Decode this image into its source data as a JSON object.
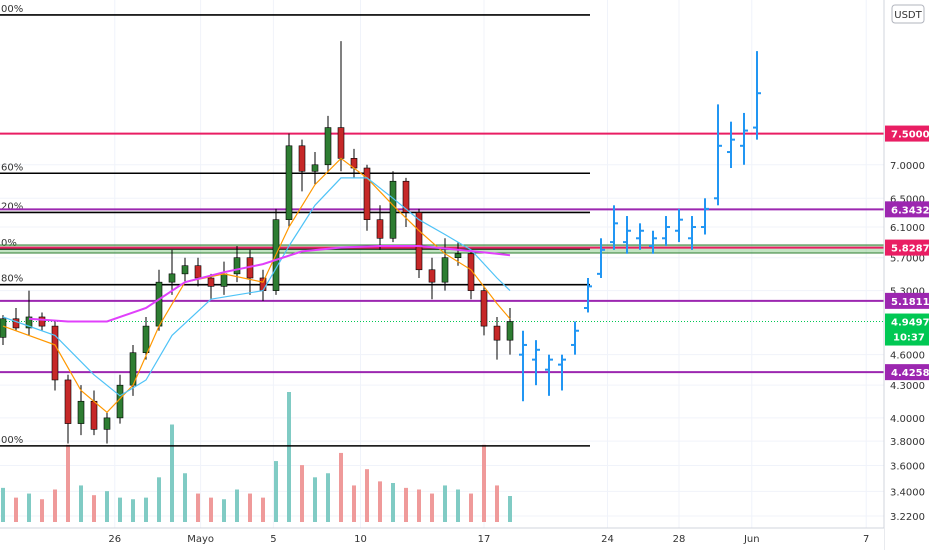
{
  "chart_data": {
    "type": "candlestick",
    "quote_currency": "USDT",
    "y_scale": "log",
    "ylim": [
      3.22,
      9.9
    ],
    "y_ticks": [
      {
        "label": "7.0000",
        "value": 7.0
      },
      {
        "label": "6.5000",
        "value": 6.5
      },
      {
        "label": "6.1000",
        "value": 6.1
      },
      {
        "label": "5.7000",
        "value": 5.7
      },
      {
        "label": "5.3000",
        "value": 5.3
      },
      {
        "label": "4.6000",
        "value": 4.6
      },
      {
        "label": "4.3000",
        "value": 4.3
      },
      {
        "label": "4.0000",
        "value": 4.0
      },
      {
        "label": "3.8000",
        "value": 3.8
      },
      {
        "label": "3.6000",
        "value": 3.6
      },
      {
        "label": "3.4000",
        "value": 3.4
      },
      {
        "label": "3.2200",
        "value": 3.22
      }
    ],
    "x_domain": [
      0,
      67.2
    ],
    "x_ticks": [
      {
        "label": "26",
        "value": 8.6
      },
      {
        "label": "Mayo",
        "value": 15.2
      },
      {
        "label": "5",
        "value": 20.8
      },
      {
        "label": "10",
        "value": 27.5
      },
      {
        "label": "17",
        "value": 37.0
      },
      {
        "label": "24",
        "value": 46.5
      },
      {
        "label": "28",
        "value": 52.0
      },
      {
        "label": "Jun",
        "value": 57.6
      },
      {
        "label": "7",
        "value": 66.4
      }
    ],
    "price_levels": [
      {
        "label": "7.5000",
        "value": 7.5,
        "color": "#e91e63"
      },
      {
        "label": "6.3432",
        "value": 6.3432,
        "color": "#9c27b0"
      },
      {
        "label": "5.8287",
        "value": 5.8287,
        "color": "#e91e63"
      },
      {
        "label": "5.1811",
        "value": 5.1811,
        "color": "#9c27b0"
      },
      {
        "label": "4.4258",
        "value": 4.4258,
        "color": "#9c27b0"
      }
    ],
    "fib_levels": [
      {
        "label": "00%",
        "value": 9.75
      },
      {
        "label": "60%",
        "value": 6.87
      },
      {
        "label": "20%",
        "value": 6.3
      },
      {
        "label": "0%",
        "value": 5.81
      },
      {
        "label": "80%",
        "value": 5.37
      },
      {
        "label": "00%",
        "value": 3.76
      }
    ],
    "current_price": {
      "label": "4.9497",
      "countdown": "10:37",
      "value": 4.9497,
      "color": "#00c853"
    },
    "candles": [
      [
        0,
        4.78,
        4.98,
        4.7,
        5.02
      ],
      [
        1,
        4.98,
        4.88,
        4.85,
        5.1
      ],
      [
        2,
        4.88,
        5.0,
        4.8,
        5.3
      ],
      [
        3,
        5.0,
        4.9,
        4.85,
        5.05
      ],
      [
        4,
        4.9,
        4.35,
        4.25,
        4.95
      ],
      [
        5,
        4.35,
        3.95,
        3.78,
        4.4
      ],
      [
        6,
        3.95,
        4.15,
        3.85,
        4.3
      ],
      [
        7,
        4.15,
        3.9,
        3.85,
        4.25
      ],
      [
        8,
        3.9,
        4.0,
        3.78,
        4.05
      ],
      [
        9,
        4.0,
        4.3,
        3.95,
        4.4
      ],
      [
        10,
        4.3,
        4.62,
        4.2,
        4.7
      ],
      [
        11,
        4.62,
        4.9,
        4.55,
        5.0
      ],
      [
        12,
        4.9,
        5.4,
        4.85,
        5.55
      ],
      [
        13,
        5.4,
        5.5,
        5.25,
        5.8
      ],
      [
        14,
        5.5,
        5.6,
        5.4,
        5.7
      ],
      [
        15,
        5.6,
        5.45,
        5.35,
        5.7
      ],
      [
        16,
        5.45,
        5.35,
        5.2,
        5.5
      ],
      [
        17,
        5.35,
        5.5,
        5.25,
        5.65
      ],
      [
        18,
        5.5,
        5.7,
        5.4,
        5.85
      ],
      [
        19,
        5.7,
        5.45,
        5.25,
        5.8
      ],
      [
        20,
        5.45,
        5.3,
        5.18,
        5.55
      ],
      [
        21,
        5.3,
        6.2,
        5.25,
        6.35
      ],
      [
        22,
        6.2,
        7.3,
        6.1,
        7.5
      ],
      [
        23,
        7.3,
        6.9,
        6.6,
        7.4
      ],
      [
        24,
        6.9,
        7.0,
        6.7,
        7.2
      ],
      [
        25,
        7.0,
        7.6,
        6.9,
        7.8
      ],
      [
        26,
        7.6,
        7.1,
        6.9,
        9.2
      ],
      [
        27,
        7.1,
        6.95,
        6.8,
        7.25
      ],
      [
        28,
        6.95,
        6.2,
        6.05,
        7.0
      ],
      [
        29,
        6.2,
        5.95,
        5.8,
        6.4
      ],
      [
        30,
        5.95,
        6.75,
        5.9,
        6.9
      ],
      [
        31,
        6.75,
        6.3,
        6.1,
        6.8
      ],
      [
        32,
        6.3,
        5.55,
        5.45,
        6.35
      ],
      [
        33,
        5.55,
        5.4,
        5.2,
        5.7
      ],
      [
        34,
        5.4,
        5.7,
        5.3,
        5.95
      ],
      [
        35,
        5.7,
        5.75,
        5.6,
        5.9
      ],
      [
        36,
        5.75,
        5.3,
        5.2,
        5.8
      ],
      [
        37,
        5.3,
        4.9,
        4.8,
        5.35
      ],
      [
        38,
        4.9,
        4.75,
        4.55,
        5.0
      ],
      [
        39,
        4.75,
        4.95,
        4.6,
        5.1
      ]
    ],
    "projection": [
      [
        40,
        4.6,
        4.7,
        4.15,
        4.85
      ],
      [
        41,
        4.55,
        4.65,
        4.3,
        4.75
      ],
      [
        42,
        4.45,
        4.55,
        4.2,
        4.6
      ],
      [
        43,
        4.5,
        4.55,
        4.25,
        4.6
      ],
      [
        44,
        4.7,
        4.85,
        4.6,
        4.95
      ],
      [
        45,
        5.1,
        5.35,
        5.05,
        5.45
      ],
      [
        46,
        5.5,
        5.8,
        5.45,
        5.95
      ],
      [
        47,
        5.9,
        6.15,
        5.8,
        6.4
      ],
      [
        48,
        5.9,
        6.05,
        5.75,
        6.25
      ],
      [
        49,
        5.95,
        6.05,
        5.8,
        6.15
      ],
      [
        50,
        5.85,
        5.95,
        5.75,
        6.05
      ],
      [
        51,
        5.95,
        6.1,
        5.85,
        6.25
      ],
      [
        52,
        6.05,
        6.2,
        5.9,
        6.35
      ],
      [
        53,
        5.95,
        6.1,
        5.8,
        6.25
      ],
      [
        54,
        6.1,
        6.35,
        6.0,
        6.5
      ],
      [
        55,
        6.5,
        7.3,
        6.4,
        8.0
      ],
      [
        56,
        7.2,
        7.4,
        6.95,
        7.7
      ],
      [
        57,
        7.3,
        7.55,
        7.0,
        7.85
      ],
      [
        58,
        7.6,
        8.2,
        7.4,
        9.0
      ]
    ],
    "volume": [
      [
        0,
        0.42
      ],
      [
        1,
        0.3
      ],
      [
        2,
        0.35
      ],
      [
        3,
        0.28
      ],
      [
        4,
        0.4
      ],
      [
        5,
        0.95
      ],
      [
        6,
        0.45
      ],
      [
        7,
        0.33
      ],
      [
        8,
        0.38
      ],
      [
        9,
        0.3
      ],
      [
        10,
        0.28
      ],
      [
        11,
        0.3
      ],
      [
        12,
        0.55
      ],
      [
        13,
        1.2
      ],
      [
        14,
        0.6
      ],
      [
        15,
        0.35
      ],
      [
        16,
        0.3
      ],
      [
        17,
        0.28
      ],
      [
        18,
        0.4
      ],
      [
        19,
        0.35
      ],
      [
        20,
        0.3
      ],
      [
        21,
        0.75
      ],
      [
        22,
        1.6
      ],
      [
        23,
        0.7
      ],
      [
        24,
        0.55
      ],
      [
        25,
        0.6
      ],
      [
        26,
        0.85
      ],
      [
        27,
        0.45
      ],
      [
        28,
        0.65
      ],
      [
        29,
        0.5
      ],
      [
        30,
        0.48
      ],
      [
        31,
        0.42
      ],
      [
        32,
        0.4
      ],
      [
        33,
        0.35
      ],
      [
        34,
        0.45
      ],
      [
        35,
        0.4
      ],
      [
        36,
        0.35
      ],
      [
        37,
        0.95
      ],
      [
        38,
        0.45
      ],
      [
        39,
        0.32
      ]
    ],
    "indicators": [
      {
        "color": "#ff9800",
        "points": [
          [
            0,
            4.9
          ],
          [
            4,
            4.7
          ],
          [
            6,
            4.25
          ],
          [
            8,
            4.05
          ],
          [
            10,
            4.3
          ],
          [
            12,
            4.9
          ],
          [
            14,
            5.4
          ],
          [
            17,
            5.5
          ],
          [
            20,
            5.4
          ],
          [
            22,
            6.1
          ],
          [
            24,
            6.7
          ],
          [
            26,
            7.1
          ],
          [
            28,
            6.8
          ],
          [
            30,
            6.4
          ],
          [
            32,
            6.05
          ],
          [
            34,
            5.75
          ],
          [
            36,
            5.55
          ],
          [
            38,
            5.15
          ],
          [
            39,
            4.98
          ]
        ]
      },
      {
        "color": "#4fc3f7",
        "points": [
          [
            0,
            5.0
          ],
          [
            4,
            4.8
          ],
          [
            7,
            4.4
          ],
          [
            9,
            4.2
          ],
          [
            11,
            4.35
          ],
          [
            13,
            4.8
          ],
          [
            16,
            5.2
          ],
          [
            20,
            5.3
          ],
          [
            22,
            5.85
          ],
          [
            24,
            6.4
          ],
          [
            26,
            6.8
          ],
          [
            28,
            6.8
          ],
          [
            30,
            6.5
          ],
          [
            32,
            6.2
          ],
          [
            34,
            6.0
          ],
          [
            36,
            5.8
          ],
          [
            38,
            5.45
          ],
          [
            39,
            5.3
          ]
        ]
      },
      {
        "color": "#e040fb",
        "points": [
          [
            2,
            4.98
          ],
          [
            5,
            4.95
          ],
          [
            8,
            4.95
          ],
          [
            11,
            5.1
          ],
          [
            14,
            5.4
          ],
          [
            17,
            5.52
          ],
          [
            20,
            5.62
          ],
          [
            23,
            5.78
          ],
          [
            26,
            5.83
          ],
          [
            29,
            5.85
          ],
          [
            32,
            5.85
          ],
          [
            35,
            5.8
          ],
          [
            38,
            5.75
          ],
          [
            39,
            5.73
          ]
        ]
      }
    ]
  }
}
